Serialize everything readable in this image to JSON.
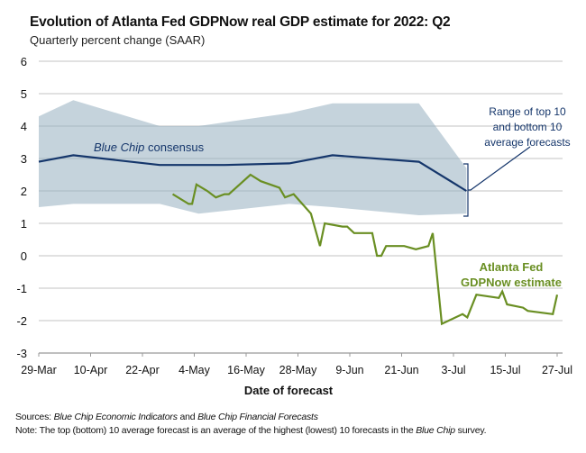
{
  "title": "Evolution of Atlanta Fed GDPNow real GDP estimate for 2022: Q2",
  "subtitle": "Quarterly percent change (SAAR)",
  "notes": {
    "sources_label": "Sources:",
    "sources_italic_1": "Blue Chip Economic Indicators",
    "sources_mid": " and ",
    "sources_italic_2": "Blue Chip Financial Forecasts",
    "note_label": "Note:",
    "note_text": " The top (bottom) 10 average forecast is an average of the highest (lowest) 10 forecasts in the ",
    "note_italic": "Blue Chip",
    "note_end": " survey."
  },
  "chart_data": {
    "type": "line",
    "title": "Evolution of Atlanta Fed GDPNow real GDP estimate for 2022: Q2",
    "ylabel": "Quarterly percent change (SAAR)",
    "xlabel": "Date of forecast",
    "x_units": "days since 29-Mar",
    "xlim": [
      0,
      120
    ],
    "ylim": [
      -3,
      6
    ],
    "yticks": [
      "6",
      "5",
      "4",
      "3",
      "2",
      "1",
      "0",
      "-1",
      "-2",
      "-3"
    ],
    "xticks": [
      "29-Mar",
      "10-Apr",
      "22-Apr",
      "4-May",
      "16-May",
      "28-May",
      "9-Jun",
      "21-Jun",
      "3-Jul",
      "15-Jul",
      "27-Jul"
    ],
    "grid": true,
    "colors": {
      "blue_chip": "#15366b",
      "band": "#c5d3dc",
      "gdpnow": "#6a8f23",
      "grid": "#cfcfcf"
    },
    "band": {
      "name": "Range of top 10 and bottom 10 average forecasts",
      "x": [
        0,
        8,
        28,
        37,
        58,
        68,
        88,
        99
      ],
      "upper": [
        4.3,
        4.8,
        4.0,
        4.0,
        4.4,
        4.7,
        4.7,
        2.7
      ],
      "lower": [
        1.5,
        1.6,
        1.6,
        1.3,
        1.6,
        1.5,
        1.25,
        1.3
      ]
    },
    "series": [
      {
        "name": "Blue Chip consensus",
        "label_italic": "Blue Chip",
        "label_rest": " consensus",
        "x": [
          0,
          8,
          28,
          43,
          58,
          68,
          88,
          99
        ],
        "y": [
          2.9,
          3.1,
          2.8,
          2.8,
          2.85,
          3.1,
          2.9,
          2.0
        ]
      },
      {
        "name": "Atlanta Fed GDPNow estimate",
        "label_line1": "Atlanta Fed",
        "label_line2": "GDPNow estimate",
        "x": [
          31,
          34.7,
          35.5,
          36.5,
          39,
          41,
          43,
          44,
          49,
          51.4,
          55.7,
          57,
          59,
          63,
          65.1,
          66.2,
          70.3,
          71.4,
          73,
          77.2,
          78.3,
          79.3,
          80.4,
          84.6,
          87.3,
          90.2,
          91.2,
          93.3,
          98.1,
          99.2,
          101.3,
          106.5,
          107.3,
          108.4,
          112.1,
          113.2,
          119,
          120
        ],
        "y": [
          1.9,
          1.6,
          1.6,
          2.2,
          2.0,
          1.8,
          1.9,
          1.9,
          2.5,
          2.3,
          2.1,
          1.8,
          1.9,
          1.3,
          0.3,
          1.0,
          0.9,
          0.9,
          0.7,
          0.7,
          0.0,
          0.0,
          0.3,
          0.3,
          0.2,
          0.3,
          0.7,
          -2.1,
          -1.8,
          -1.9,
          -1.2,
          -1.3,
          -1.1,
          -1.5,
          -1.6,
          -1.7,
          -1.8,
          -1.2
        ]
      }
    ],
    "annotation": {
      "line1": "Range of top 10",
      "line2": "and bottom 10",
      "line3": "average forecasts"
    }
  }
}
